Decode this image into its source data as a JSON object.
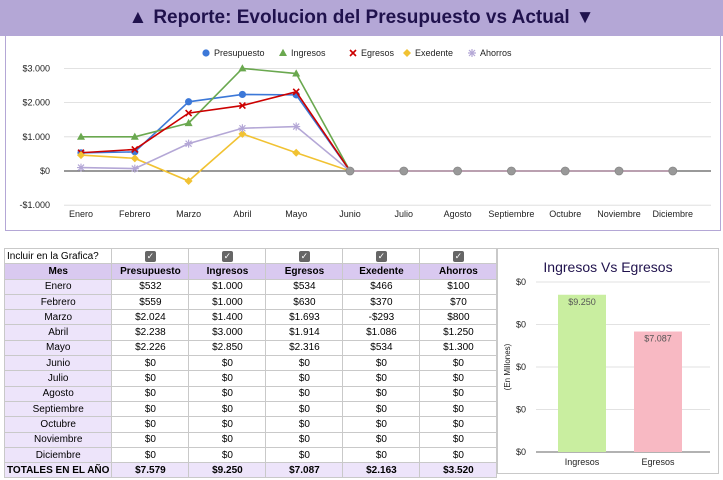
{
  "banner": {
    "left_arrow": "▲",
    "title": "Reporte: Evolucion del Presupuesto vs Actual",
    "right_arrow": "▼"
  },
  "chart_data": [
    {
      "type": "line",
      "title": "",
      "x": [
        "Enero",
        "Febrero",
        "Marzo",
        "Abril",
        "Mayo",
        "Junio",
        "Julio",
        "Agosto",
        "Septiembre",
        "Octubre",
        "Noviembre",
        "Diciembre"
      ],
      "ylim": [
        -1000,
        3000
      ],
      "yticks": [
        -1000,
        0,
        1000,
        2000,
        3000
      ],
      "ytick_labels": [
        "-$1.000",
        "$0",
        "$1.000",
        "$2.000",
        "$3.000"
      ],
      "legend_position": "top",
      "series": [
        {
          "name": "Presupuesto",
          "color": "#3c78d8",
          "marker": "circle",
          "values": [
            532,
            559,
            2024,
            2238,
            2226,
            0,
            0,
            0,
            0,
            0,
            0,
            0
          ]
        },
        {
          "name": "Ingresos",
          "color": "#6aa84f",
          "marker": "triangle",
          "values": [
            1000,
            1000,
            1400,
            3000,
            2850,
            0,
            0,
            0,
            0,
            0,
            0,
            0
          ]
        },
        {
          "name": "Egresos",
          "color": "#cc0000",
          "marker": "x",
          "values": [
            534,
            630,
            1693,
            1914,
            2316,
            0,
            0,
            0,
            0,
            0,
            0,
            0
          ]
        },
        {
          "name": "Exedente",
          "color": "#f1c232",
          "marker": "diamond",
          "values": [
            466,
            370,
            -293,
            1086,
            534,
            0,
            0,
            0,
            0,
            0,
            0,
            0
          ]
        },
        {
          "name": "Ahorros",
          "color": "#b4a7d6",
          "marker": "star",
          "values": [
            100,
            70,
            800,
            1250,
            1300,
            0,
            0,
            0,
            0,
            0,
            0,
            0
          ]
        }
      ]
    },
    {
      "type": "bar",
      "title": "Ingresos Vs Egresos",
      "categories": [
        "Ingresos",
        "Egresos"
      ],
      "values": [
        9250,
        7087
      ],
      "data_labels": [
        "$9.250",
        "$7.087"
      ],
      "colors": [
        "#c9eea0",
        "#f8b9c3"
      ],
      "ylabel": "(En Millones)",
      "ylim": [
        0,
        10000
      ],
      "ytick_labels": [
        "$0",
        "$0",
        "$0",
        "$0",
        "$0"
      ]
    }
  ],
  "table": {
    "include_label": "Incluir en la Grafica?",
    "columns": [
      "Mes",
      "Presupuesto",
      "Ingresos",
      "Egresos",
      "Exedente",
      "Ahorros"
    ],
    "checkbox_mark": "✓",
    "rows": [
      [
        "Enero",
        "$532",
        "$1.000",
        "$534",
        "$466",
        "$100"
      ],
      [
        "Febrero",
        "$559",
        "$1.000",
        "$630",
        "$370",
        "$70"
      ],
      [
        "Marzo",
        "$2.024",
        "$1.400",
        "$1.693",
        "-$293",
        "$800"
      ],
      [
        "Abril",
        "$2.238",
        "$3.000",
        "$1.914",
        "$1.086",
        "$1.250"
      ],
      [
        "Mayo",
        "$2.226",
        "$2.850",
        "$2.316",
        "$534",
        "$1.300"
      ],
      [
        "Junio",
        "$0",
        "$0",
        "$0",
        "$0",
        "$0"
      ],
      [
        "Julio",
        "$0",
        "$0",
        "$0",
        "$0",
        "$0"
      ],
      [
        "Agosto",
        "$0",
        "$0",
        "$0",
        "$0",
        "$0"
      ],
      [
        "Septiembre",
        "$0",
        "$0",
        "$0",
        "$0",
        "$0"
      ],
      [
        "Octubre",
        "$0",
        "$0",
        "$0",
        "$0",
        "$0"
      ],
      [
        "Noviembre",
        "$0",
        "$0",
        "$0",
        "$0",
        "$0"
      ],
      [
        "Diciembre",
        "$0",
        "$0",
        "$0",
        "$0",
        "$0"
      ]
    ],
    "totals": [
      "TOTALES EN EL AÑO",
      "$7.579",
      "$9.250",
      "$7.087",
      "$2.163",
      "$3.520"
    ]
  }
}
